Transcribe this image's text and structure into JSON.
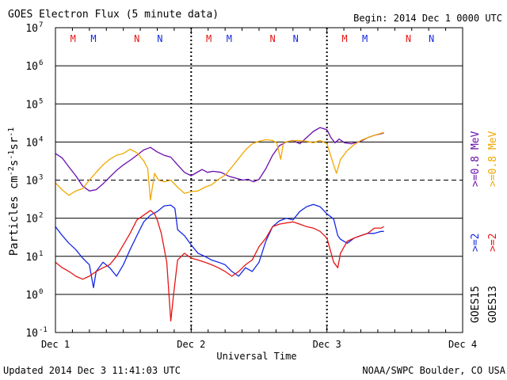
{
  "header": {
    "title": "GOES Electron Flux (5 minute data)",
    "begin": "Begin: 2014 Dec 1 0000 UTC"
  },
  "footer": {
    "updated": "Updated 2014 Dec  3 11:41:03 UTC",
    "credit": "NOAA/SWPC Boulder, CO USA"
  },
  "colors": {
    "purple": "#6a0dad",
    "orange": "#f0a800",
    "blue": "#1428e6",
    "red": "#e61414",
    "grid": "#000000"
  },
  "chart_data": {
    "type": "line",
    "title": "GOES Electron Flux (5 minute data)",
    "xlabel": "Universal Time",
    "ylabel": "Particles cm-2 s-1 sr-1",
    "ylabel_parts": {
      "base": "Particles cm",
      "e1": "-2",
      "s": "s",
      "e2": "-1",
      "sr": "sr",
      "e3": "-1"
    },
    "y_scale": "log",
    "ylim_exponents": [
      -1,
      7
    ],
    "y_ticks": [
      {
        "exp": -1,
        "label": "10",
        "sup": "-1"
      },
      {
        "exp": 0,
        "label": "10",
        "sup": "0"
      },
      {
        "exp": 1,
        "label": "10",
        "sup": "1"
      },
      {
        "exp": 2,
        "label": "10",
        "sup": "2"
      },
      {
        "exp": 3,
        "label": "10",
        "sup": "3"
      },
      {
        "exp": 4,
        "label": "10",
        "sup": "4"
      },
      {
        "exp": 5,
        "label": "10",
        "sup": "5"
      },
      {
        "exp": 6,
        "label": "10",
        "sup": "6"
      },
      {
        "exp": 7,
        "label": "10",
        "sup": "7"
      }
    ],
    "xlim_days": [
      0,
      3
    ],
    "x_ticks": [
      {
        "day": 0,
        "label": "Dec 1"
      },
      {
        "day": 1,
        "label": "Dec 2"
      },
      {
        "day": 2,
        "label": "Dec 3"
      },
      {
        "day": 3,
        "label": "Dec 4"
      }
    ],
    "grid": true,
    "dashed_threshold_exponent": 3,
    "top_markers": [
      {
        "day": 0.13,
        "text": "M",
        "color": "red"
      },
      {
        "day": 0.28,
        "text": "M",
        "color": "blue"
      },
      {
        "day": 0.6,
        "text": "N",
        "color": "red"
      },
      {
        "day": 0.77,
        "text": "N",
        "color": "blue"
      },
      {
        "day": 1.13,
        "text": "M",
        "color": "red"
      },
      {
        "day": 1.28,
        "text": "M",
        "color": "blue"
      },
      {
        "day": 1.6,
        "text": "N",
        "color": "red"
      },
      {
        "day": 1.77,
        "text": "N",
        "color": "blue"
      },
      {
        "day": 2.13,
        "text": "M",
        "color": "red"
      },
      {
        "day": 2.28,
        "text": "M",
        "color": "blue"
      },
      {
        "day": 2.6,
        "text": "N",
        "color": "red"
      },
      {
        "day": 2.77,
        "text": "N",
        "color": "blue"
      }
    ],
    "legend": {
      "placement": "right-outside",
      "upper": [
        {
          "text": ">=0.8 MeV",
          "color": "purple"
        },
        {
          "text": ">=0.8 MeV",
          "color": "orange"
        }
      ],
      "lower": [
        {
          "text": ">=2",
          "color": "blue"
        },
        {
          "text": ">=2",
          "color": "red"
        }
      ],
      "sats": [
        {
          "text": "GOES15"
        },
        {
          "text": "GOES13"
        }
      ]
    },
    "series": [
      {
        "name": "GOES15 >=0.8 MeV",
        "color": "purple",
        "points": [
          [
            0,
            5000
          ],
          [
            0.05,
            3800
          ],
          [
            0.1,
            2200
          ],
          [
            0.15,
            1300
          ],
          [
            0.2,
            700
          ],
          [
            0.25,
            520
          ],
          [
            0.3,
            560
          ],
          [
            0.35,
            800
          ],
          [
            0.4,
            1200
          ],
          [
            0.45,
            1800
          ],
          [
            0.5,
            2500
          ],
          [
            0.55,
            3300
          ],
          [
            0.6,
            4500
          ],
          [
            0.65,
            6200
          ],
          [
            0.7,
            7200
          ],
          [
            0.75,
            5500
          ],
          [
            0.8,
            4500
          ],
          [
            0.85,
            4000
          ],
          [
            0.9,
            2500
          ],
          [
            0.95,
            1600
          ],
          [
            1.0,
            1300
          ],
          [
            1.03,
            1500
          ],
          [
            1.08,
            1900
          ],
          [
            1.12,
            1600
          ],
          [
            1.16,
            1700
          ],
          [
            1.22,
            1600
          ],
          [
            1.28,
            1250
          ],
          [
            1.32,
            1150
          ],
          [
            1.38,
            1000
          ],
          [
            1.42,
            1050
          ],
          [
            1.46,
            900
          ],
          [
            1.5,
            1050
          ],
          [
            1.55,
            2000
          ],
          [
            1.6,
            4500
          ],
          [
            1.65,
            8000
          ],
          [
            1.7,
            10000
          ],
          [
            1.75,
            11000
          ],
          [
            1.8,
            9000
          ],
          [
            1.85,
            13000
          ],
          [
            1.9,
            19000
          ],
          [
            1.95,
            24000
          ],
          [
            2.0,
            21000
          ],
          [
            2.03,
            13000
          ],
          [
            2.06,
            9500
          ],
          [
            2.09,
            12000
          ],
          [
            2.13,
            9500
          ],
          [
            2.18,
            9000
          ],
          [
            2.25,
            10500
          ],
          [
            2.3,
            13000
          ],
          [
            2.35,
            15000
          ],
          [
            2.4,
            16500
          ],
          [
            2.42,
            17500
          ]
        ]
      },
      {
        "name": "GOES13 >=0.8 MeV",
        "color": "orange",
        "points": [
          [
            0,
            850
          ],
          [
            0.05,
            550
          ],
          [
            0.1,
            400
          ],
          [
            0.15,
            520
          ],
          [
            0.2,
            600
          ],
          [
            0.25,
            1000
          ],
          [
            0.3,
            1600
          ],
          [
            0.35,
            2500
          ],
          [
            0.4,
            3500
          ],
          [
            0.45,
            4500
          ],
          [
            0.5,
            5000
          ],
          [
            0.55,
            6500
          ],
          [
            0.6,
            5200
          ],
          [
            0.65,
            3200
          ],
          [
            0.68,
            2000
          ],
          [
            0.7,
            300
          ],
          [
            0.73,
            1500
          ],
          [
            0.76,
            1000
          ],
          [
            0.8,
            900
          ],
          [
            0.85,
            1000
          ],
          [
            0.9,
            650
          ],
          [
            0.95,
            450
          ],
          [
            1.0,
            500
          ],
          [
            1.05,
            520
          ],
          [
            1.1,
            650
          ],
          [
            1.15,
            750
          ],
          [
            1.2,
            1050
          ],
          [
            1.25,
            1350
          ],
          [
            1.3,
            2200
          ],
          [
            1.35,
            3700
          ],
          [
            1.4,
            6200
          ],
          [
            1.45,
            9000
          ],
          [
            1.5,
            10500
          ],
          [
            1.55,
            11500
          ],
          [
            1.6,
            11000
          ],
          [
            1.63,
            9500
          ],
          [
            1.66,
            3500
          ],
          [
            1.68,
            9500
          ],
          [
            1.72,
            10500
          ],
          [
            1.78,
            11000
          ],
          [
            1.85,
            10500
          ],
          [
            1.9,
            9500
          ],
          [
            1.95,
            11000
          ],
          [
            2.0,
            9000
          ],
          [
            2.05,
            2500
          ],
          [
            2.07,
            1500
          ],
          [
            2.1,
            3500
          ],
          [
            2.15,
            6000
          ],
          [
            2.2,
            8500
          ],
          [
            2.25,
            11000
          ],
          [
            2.3,
            13000
          ],
          [
            2.35,
            15000
          ],
          [
            2.4,
            17000
          ],
          [
            2.42,
            18000
          ]
        ]
      },
      {
        "name": "GOES15 >=2 MeV",
        "color": "blue",
        "points": [
          [
            0,
            60
          ],
          [
            0.05,
            35
          ],
          [
            0.1,
            22
          ],
          [
            0.15,
            15
          ],
          [
            0.2,
            9
          ],
          [
            0.25,
            6
          ],
          [
            0.28,
            1.5
          ],
          [
            0.3,
            4
          ],
          [
            0.35,
            7
          ],
          [
            0.4,
            5
          ],
          [
            0.45,
            3
          ],
          [
            0.5,
            6
          ],
          [
            0.55,
            15
          ],
          [
            0.6,
            35
          ],
          [
            0.65,
            80
          ],
          [
            0.7,
            120
          ],
          [
            0.75,
            150
          ],
          [
            0.8,
            210
          ],
          [
            0.85,
            220
          ],
          [
            0.88,
            180
          ],
          [
            0.9,
            50
          ],
          [
            0.95,
            35
          ],
          [
            1.0,
            20
          ],
          [
            1.05,
            12
          ],
          [
            1.1,
            10
          ],
          [
            1.15,
            8
          ],
          [
            1.2,
            7
          ],
          [
            1.25,
            6
          ],
          [
            1.3,
            4
          ],
          [
            1.35,
            3
          ],
          [
            1.4,
            5
          ],
          [
            1.45,
            4
          ],
          [
            1.5,
            7
          ],
          [
            1.55,
            25
          ],
          [
            1.6,
            60
          ],
          [
            1.65,
            85
          ],
          [
            1.7,
            100
          ],
          [
            1.75,
            90
          ],
          [
            1.8,
            150
          ],
          [
            1.85,
            200
          ],
          [
            1.9,
            230
          ],
          [
            1.95,
            200
          ],
          [
            2.0,
            130
          ],
          [
            2.05,
            95
          ],
          [
            2.08,
            35
          ],
          [
            2.1,
            28
          ],
          [
            2.15,
            22
          ],
          [
            2.2,
            30
          ],
          [
            2.25,
            35
          ],
          [
            2.3,
            40
          ],
          [
            2.35,
            40
          ],
          [
            2.4,
            45
          ],
          [
            2.42,
            45
          ]
        ]
      },
      {
        "name": "GOES13 >=2 MeV",
        "color": "red",
        "points": [
          [
            0,
            7
          ],
          [
            0.05,
            5
          ],
          [
            0.1,
            4
          ],
          [
            0.15,
            3
          ],
          [
            0.2,
            2.5
          ],
          [
            0.25,
            3
          ],
          [
            0.3,
            4
          ],
          [
            0.35,
            5
          ],
          [
            0.4,
            6
          ],
          [
            0.45,
            10
          ],
          [
            0.5,
            20
          ],
          [
            0.55,
            40
          ],
          [
            0.6,
            90
          ],
          [
            0.65,
            120
          ],
          [
            0.7,
            160
          ],
          [
            0.73,
            130
          ],
          [
            0.75,
            90
          ],
          [
            0.78,
            40
          ],
          [
            0.82,
            7
          ],
          [
            0.85,
            0.2
          ],
          [
            0.87,
            1
          ],
          [
            0.9,
            8
          ],
          [
            0.95,
            12
          ],
          [
            1.0,
            9
          ],
          [
            1.05,
            8
          ],
          [
            1.1,
            7
          ],
          [
            1.15,
            6
          ],
          [
            1.2,
            5
          ],
          [
            1.25,
            4
          ],
          [
            1.3,
            3
          ],
          [
            1.35,
            4
          ],
          [
            1.4,
            6
          ],
          [
            1.45,
            8
          ],
          [
            1.5,
            18
          ],
          [
            1.55,
            30
          ],
          [
            1.6,
            60
          ],
          [
            1.65,
            70
          ],
          [
            1.7,
            75
          ],
          [
            1.75,
            80
          ],
          [
            1.8,
            70
          ],
          [
            1.85,
            60
          ],
          [
            1.9,
            55
          ],
          [
            1.95,
            45
          ],
          [
            2.0,
            30
          ],
          [
            2.05,
            7
          ],
          [
            2.08,
            5
          ],
          [
            2.1,
            12
          ],
          [
            2.15,
            25
          ],
          [
            2.2,
            30
          ],
          [
            2.25,
            35
          ],
          [
            2.3,
            40
          ],
          [
            2.35,
            55
          ],
          [
            2.4,
            55
          ],
          [
            2.42,
            60
          ]
        ]
      }
    ]
  }
}
